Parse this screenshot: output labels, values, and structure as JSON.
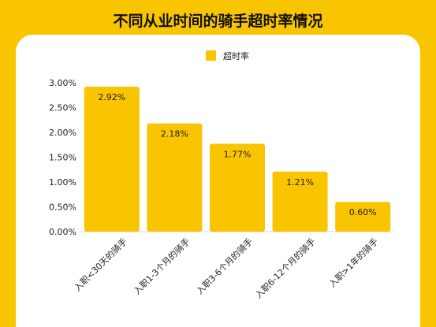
{
  "chart_data": {
    "type": "bar",
    "title": "不同从业时间的骑手超时率情况",
    "series": [
      {
        "name": "超时率",
        "color": "#F9C400",
        "values": [
          2.92,
          2.18,
          1.77,
          1.21,
          0.6
        ],
        "data_labels": [
          "2.92%",
          "2.18%",
          "1.77%",
          "1.21%",
          "0.60%"
        ]
      }
    ],
    "categories": [
      "入职<30天的骑手",
      "入职1-3个月的骑手",
      "入职3-6个月的骑手",
      "入职6-12个月的骑手",
      "入职>1年的骑手"
    ],
    "ylim": [
      0,
      3.0
    ],
    "yticks": [
      "0.00%",
      "0.50%",
      "1.00%",
      "1.50%",
      "2.00%",
      "2.50%",
      "3.00%"
    ],
    "ytick_values": [
      0,
      0.5,
      1.0,
      1.5,
      2.0,
      2.5,
      3.0
    ],
    "legend_position": "top",
    "grid": false
  }
}
